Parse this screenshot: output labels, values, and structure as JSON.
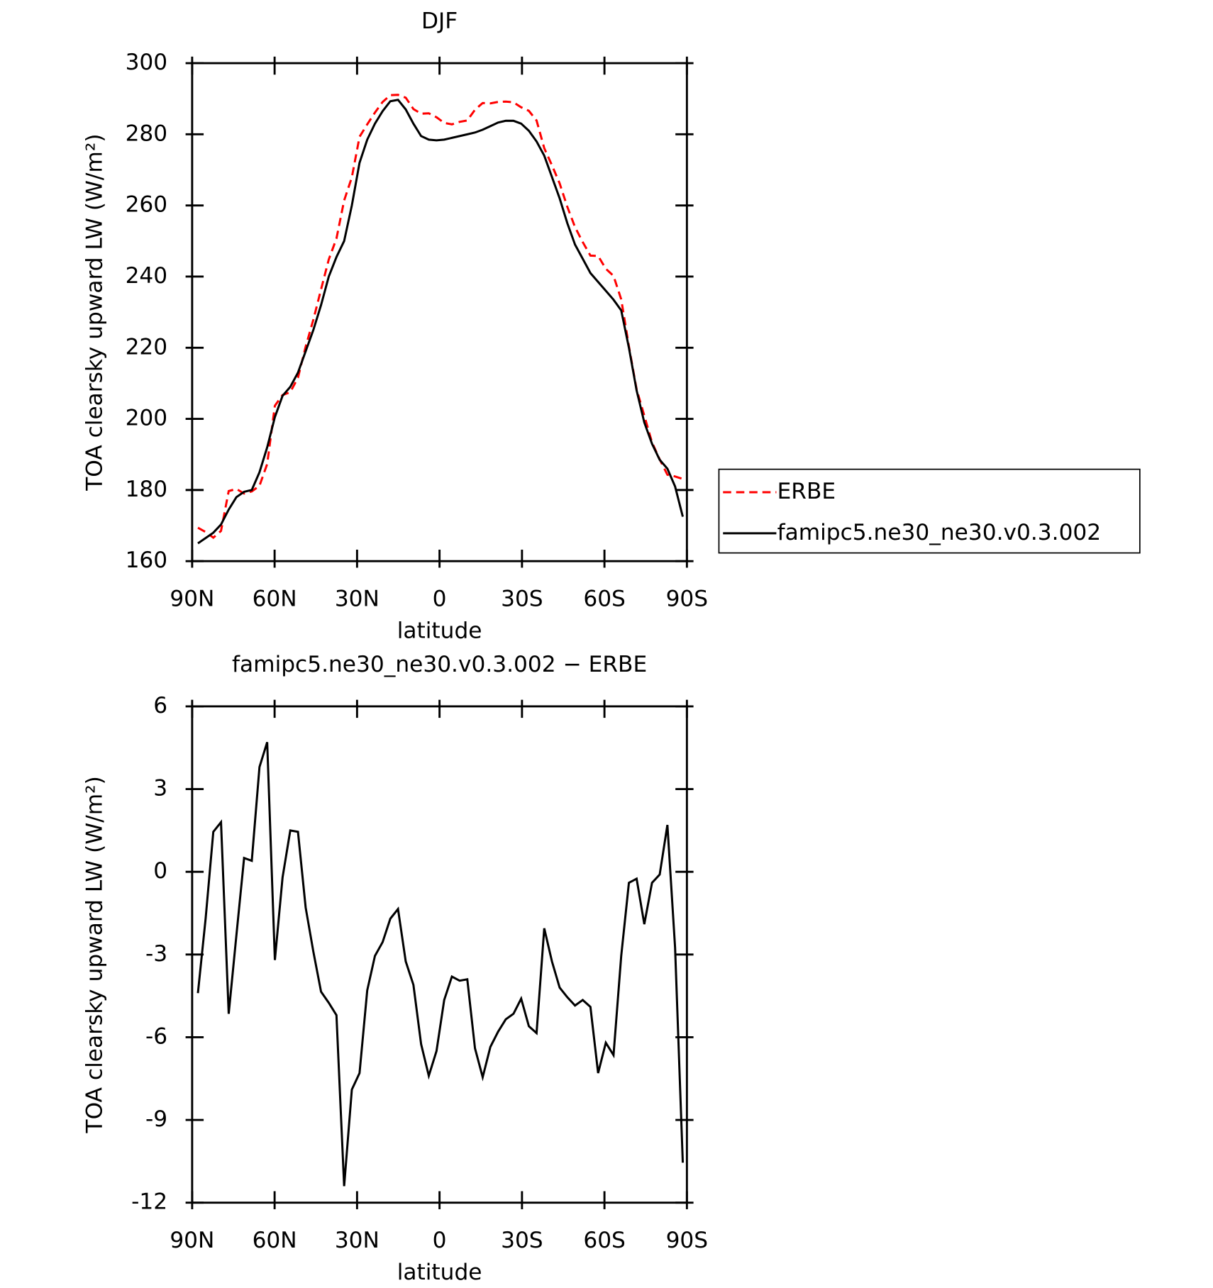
{
  "chart_data": [
    {
      "type": "line",
      "title": "DJF",
      "xlabel": "latitude",
      "ylabel": "TOA clearsky upward LW (W/m²)",
      "x": [
        87.9,
        85.1,
        82.3,
        79.5,
        76.7,
        73.9,
        71.1,
        68.3,
        65.5,
        62.7,
        59.9,
        57.1,
        54.3,
        51.5,
        48.7,
        45.9,
        43.1,
        40.3,
        37.5,
        34.7,
        31.9,
        29.1,
        26.3,
        23.5,
        20.7,
        17.9,
        15.1,
        12.3,
        9.5,
        6.7,
        3.9,
        1.1,
        -1.7,
        -4.5,
        -7.3,
        -10.1,
        -12.9,
        -15.7,
        -18.5,
        -21.3,
        -24.1,
        -26.9,
        -29.7,
        -32.5,
        -35.3,
        -38.1,
        -40.9,
        -43.7,
        -46.5,
        -49.3,
        -52.1,
        -54.9,
        -57.7,
        -60.5,
        -63.3,
        -66.1,
        -68.9,
        -71.7,
        -74.5,
        -77.3,
        -80.1,
        -82.9,
        -85.7,
        -88.5
      ],
      "series": [
        {
          "name": "ERBE",
          "color": "#ff0000",
          "style": "dashed",
          "values": [
            169.4,
            168.2,
            166.6,
            168.5,
            179.7,
            180.3,
            179,
            179.6,
            181.2,
            187.3,
            203.7,
            206.7,
            207.5,
            211.6,
            220.3,
            227.9,
            236.4,
            244.8,
            250.7,
            261.4,
            267.9,
            279.3,
            282.8,
            286.1,
            289.1,
            291,
            291.1,
            290.3,
            287.1,
            285.8,
            285.9,
            284.8,
            283.2,
            282.8,
            283.5,
            283.9,
            286.9,
            288.8,
            288.7,
            289.1,
            289.2,
            289,
            287.6,
            286.6,
            283.9,
            276.1,
            271.3,
            266.2,
            259.6,
            253.9,
            249.7,
            245.9,
            245.8,
            242.2,
            240.2,
            233.6,
            220.4,
            208.3,
            200.9,
            193.4,
            188.6,
            184.3,
            183.8,
            183.1
          ]
        },
        {
          "name": "famipc5.ne30_ne30.v0.3.002",
          "color": "#000000",
          "style": "solid",
          "values": [
            165,
            166.5,
            168,
            170.3,
            174.5,
            178,
            179.5,
            180,
            185,
            192,
            200.5,
            206.5,
            209,
            213,
            219,
            225,
            232,
            240,
            245.5,
            250,
            260,
            272,
            278.5,
            283,
            286.5,
            289.3,
            289.7,
            287,
            283,
            279.5,
            278.5,
            278.3,
            278.5,
            279,
            279.5,
            280,
            280.5,
            281.3,
            282.3,
            283.3,
            283.8,
            283.8,
            283,
            281,
            278,
            274,
            268,
            262,
            255,
            249,
            245,
            241,
            238.5,
            236,
            233.5,
            230.5,
            220,
            208,
            199,
            193,
            188.5,
            186,
            181,
            172.5
          ]
        }
      ],
      "xlim": [
        90,
        -90
      ],
      "xticks": [
        {
          "value": 90,
          "label": "90N"
        },
        {
          "value": 60,
          "label": "60N"
        },
        {
          "value": 30,
          "label": "30N"
        },
        0,
        {
          "value": -30,
          "label": "30S"
        },
        {
          "value": -60,
          "label": "60S"
        },
        {
          "value": -90,
          "label": "90S"
        }
      ],
      "ylim": [
        160,
        300
      ],
      "yticks": [
        160,
        180,
        200,
        220,
        240,
        260,
        280,
        300
      ],
      "legend": "right"
    },
    {
      "type": "line",
      "title": "famipc5.ne30_ne30.v0.3.002 − ERBE",
      "xlabel": "latitude",
      "ylabel": "TOA clearsky upward LW (W/m²)",
      "x": [
        87.9,
        85.1,
        82.3,
        79.5,
        76.7,
        73.9,
        71.1,
        68.3,
        65.5,
        62.7,
        59.9,
        57.1,
        54.3,
        51.5,
        48.7,
        45.9,
        43.1,
        40.3,
        37.5,
        34.7,
        31.9,
        29.1,
        26.3,
        23.5,
        20.7,
        17.9,
        15.1,
        12.3,
        9.5,
        6.7,
        3.9,
        1.1,
        -1.7,
        -4.5,
        -7.3,
        -10.1,
        -12.9,
        -15.7,
        -18.5,
        -21.3,
        -24.1,
        -26.9,
        -29.7,
        -32.5,
        -35.3,
        -38.1,
        -40.9,
        -43.7,
        -46.5,
        -49.3,
        -52.1,
        -54.9,
        -57.7,
        -60.5,
        -63.3,
        -66.1,
        -68.9,
        -71.7,
        -74.5,
        -77.3,
        -80.1,
        -82.9,
        -85.7,
        -88.5
      ],
      "values": [
        -4.4,
        -1.7,
        1.45,
        1.8,
        -5.15,
        -2.3,
        0.5,
        0.4,
        3.8,
        4.7,
        -3.2,
        -0.2,
        1.5,
        1.45,
        -1.3,
        -2.9,
        -4.35,
        -4.75,
        -5.2,
        -11.4,
        -7.9,
        -7.3,
        -4.3,
        -3.05,
        -2.55,
        -1.7,
        -1.35,
        -3.25,
        -4.1,
        -6.25,
        -7.4,
        -6.5,
        -4.65,
        -3.8,
        -3.95,
        -3.9,
        -6.4,
        -7.45,
        -6.35,
        -5.8,
        -5.35,
        -5.15,
        -4.6,
        -5.6,
        -5.85,
        -2.05,
        -3.25,
        -4.2,
        -4.55,
        -4.85,
        -4.65,
        -4.9,
        -7.3,
        -6.2,
        -6.65,
        -3.05,
        -0.4,
        -0.25,
        -1.9,
        -0.4,
        -0.1,
        1.7,
        -2.75,
        -10.55
      ],
      "color": "#000000",
      "xlim": [
        90,
        -90
      ],
      "xticks": [
        {
          "value": 90,
          "label": "90N"
        },
        {
          "value": 60,
          "label": "60N"
        },
        {
          "value": 30,
          "label": "30N"
        },
        0,
        {
          "value": -30,
          "label": "30S"
        },
        {
          "value": -60,
          "label": "60S"
        },
        {
          "value": -90,
          "label": "90S"
        }
      ],
      "ylim": [
        -12,
        6
      ],
      "yticks": [
        -12,
        -9,
        -6,
        -3,
        0,
        3,
        6
      ]
    }
  ]
}
